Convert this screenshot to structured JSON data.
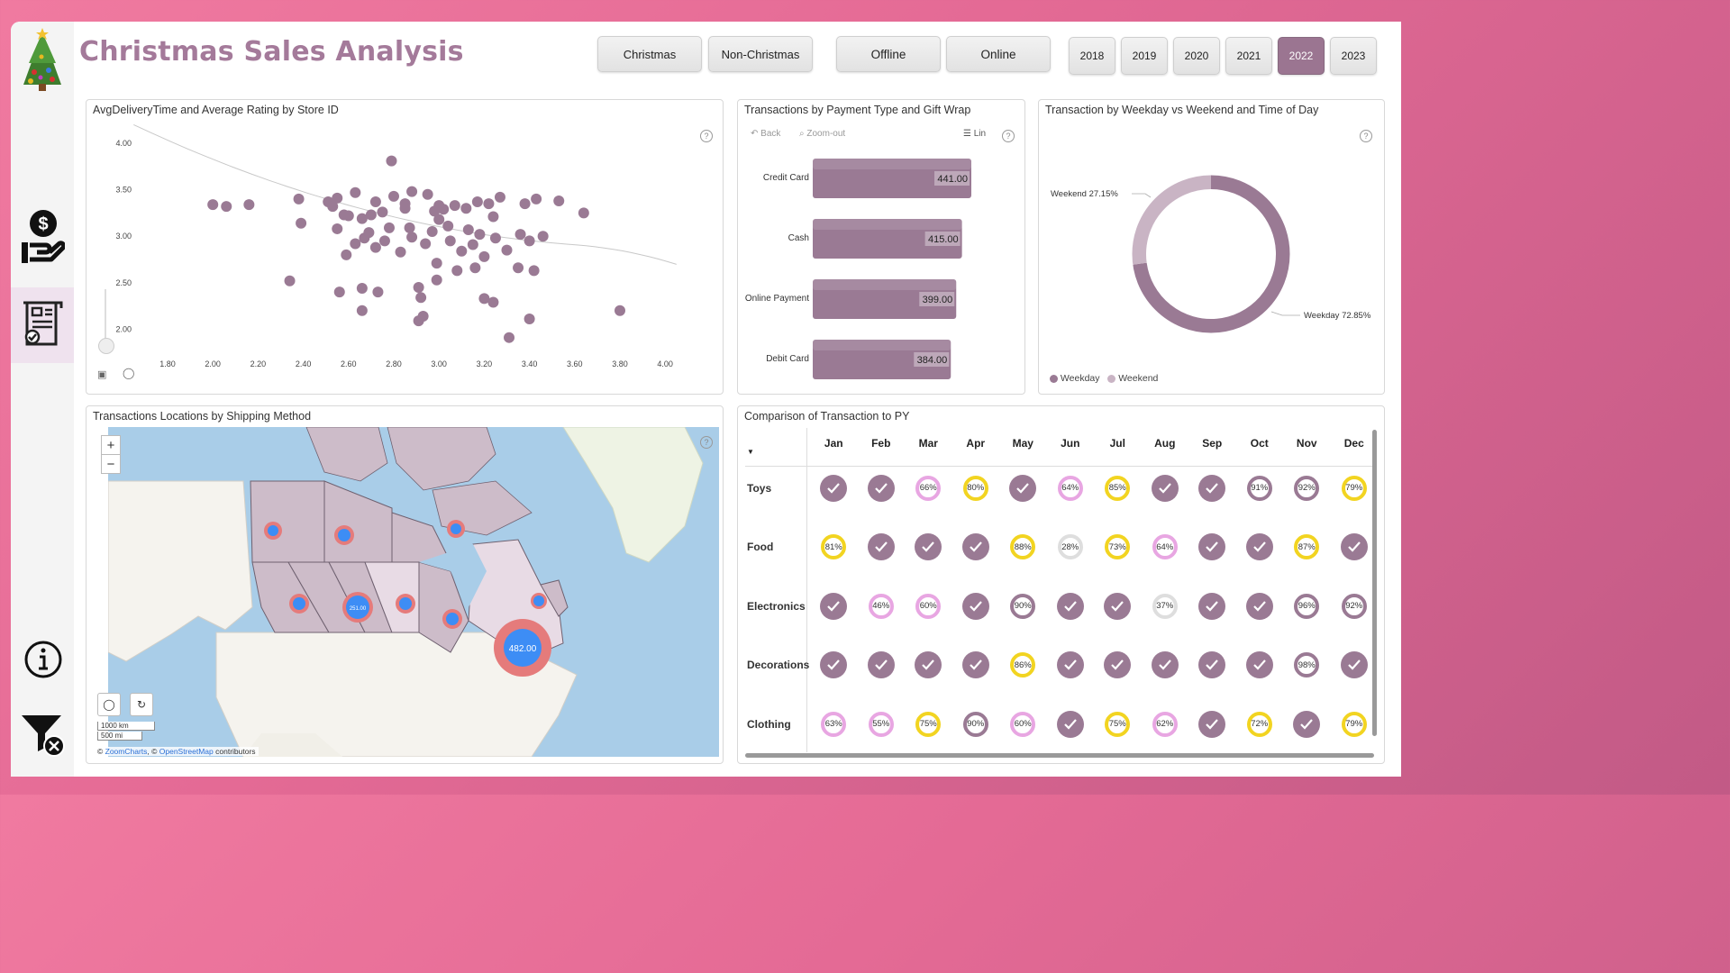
{
  "header": {
    "title": "Christmas Sales Analysis"
  },
  "filters": {
    "season": [
      "Christmas",
      "Non-Christmas"
    ],
    "channel": [
      "Offline",
      "Online"
    ],
    "years": [
      "2018",
      "2019",
      "2020",
      "2021",
      "2022",
      "2023"
    ],
    "active_year": "2022"
  },
  "scatter": {
    "title": "AvgDeliveryTime and Average Rating by Store ID",
    "y_ticks": [
      "4.00",
      "3.50",
      "3.00",
      "2.50",
      "2.00"
    ],
    "x_ticks": [
      "1.80",
      "2.00",
      "2.20",
      "2.40",
      "2.60",
      "2.80",
      "3.00",
      "3.20",
      "3.40",
      "3.60",
      "3.80",
      "4.00"
    ]
  },
  "payment": {
    "title": "Transactions by Payment Type and Gift Wrap",
    "back_label": "Back",
    "zoom_label": "Zoom-out",
    "lin_label": "Lin"
  },
  "weekday": {
    "title": "Transaction by Weekday vs Weekend and Time of Day",
    "weekend_label": "Weekend 27.15%",
    "weekday_label": "Weekday 72.85%",
    "legend": [
      "Weekday",
      "Weekend"
    ]
  },
  "map": {
    "title": "Transactions Locations by Shipping Method",
    "big_value": "482.00",
    "mid_value": "251.00",
    "scale_km": "1000 km",
    "scale_mi": "500 mi",
    "credit_a": "© ",
    "credit_b": "ZoomCharts",
    "credit_c": ", © ",
    "credit_d": "OpenStreetMap",
    "credit_e": " contributors"
  },
  "comparison": {
    "title": "Comparison of Transaction to PY",
    "months": [
      "Jan",
      "Feb",
      "Mar",
      "Apr",
      "May",
      "Jun",
      "Jul",
      "Aug",
      "Sep",
      "Oct",
      "Nov",
      "Dec"
    ],
    "rows": [
      {
        "label": "Toys",
        "cells": [
          "✓",
          "✓",
          "66%",
          "80%",
          "✓",
          "64%",
          "85%",
          "✓",
          "✓",
          "91%",
          "92%",
          "79%"
        ]
      },
      {
        "label": "Food",
        "cells": [
          "81%",
          "✓",
          "✓",
          "✓",
          "88%",
          "28%",
          "73%",
          "64%",
          "✓",
          "✓",
          "87%",
          "✓"
        ]
      },
      {
        "label": "Electronics",
        "cells": [
          "✓",
          "46%",
          "60%",
          "✓",
          "90%",
          "✓",
          "✓",
          "37%",
          "✓",
          "✓",
          "96%",
          "92%"
        ]
      },
      {
        "label": "Decorations",
        "cells": [
          "✓",
          "✓",
          "✓",
          "✓",
          "86%",
          "✓",
          "✓",
          "✓",
          "✓",
          "✓",
          "98%",
          "✓"
        ]
      },
      {
        "label": "Clothing",
        "cells": [
          "63%",
          "55%",
          "75%",
          "90%",
          "60%",
          "✓",
          "75%",
          "62%",
          "✓",
          "72%",
          "✓",
          "79%"
        ]
      }
    ]
  },
  "chart_data": [
    {
      "type": "scatter",
      "title": "AvgDeliveryTime and Average Rating by Store ID",
      "xlim": [
        1.7,
        4.1
      ],
      "ylim": [
        1.85,
        4.05
      ],
      "trendline": true,
      "points": [
        [
          2.79,
          3.81
        ],
        [
          2.0,
          3.34
        ],
        [
          2.06,
          3.32
        ],
        [
          2.16,
          3.34
        ],
        [
          2.38,
          3.4
        ],
        [
          2.39,
          3.14
        ],
        [
          2.51,
          3.37
        ],
        [
          2.53,
          3.32
        ],
        [
          2.55,
          3.41
        ],
        [
          2.58,
          3.23
        ],
        [
          2.6,
          3.22
        ],
        [
          2.63,
          3.47
        ],
        [
          2.66,
          3.19
        ],
        [
          2.7,
          3.23
        ],
        [
          2.72,
          3.37
        ],
        [
          2.75,
          3.26
        ],
        [
          2.8,
          3.43
        ],
        [
          2.85,
          3.35
        ],
        [
          2.88,
          3.48
        ],
        [
          2.95,
          3.45
        ],
        [
          2.98,
          3.27
        ],
        [
          3.02,
          3.29
        ],
        [
          3.07,
          3.33
        ],
        [
          3.12,
          3.3
        ],
        [
          3.17,
          3.37
        ],
        [
          3.22,
          3.35
        ],
        [
          3.27,
          3.42
        ],
        [
          3.38,
          3.35
        ],
        [
          3.43,
          3.4
        ],
        [
          3.53,
          3.38
        ],
        [
          3.64,
          3.25
        ],
        [
          2.55,
          3.08
        ],
        [
          2.59,
          2.8
        ],
        [
          2.63,
          2.92
        ],
        [
          2.67,
          2.98
        ],
        [
          2.72,
          2.88
        ],
        [
          2.76,
          2.95
        ],
        [
          2.83,
          2.83
        ],
        [
          2.88,
          2.99
        ],
        [
          2.94,
          2.92
        ],
        [
          2.99,
          2.71
        ],
        [
          3.05,
          2.95
        ],
        [
          3.1,
          2.84
        ],
        [
          3.15,
          2.91
        ],
        [
          3.2,
          2.78
        ],
        [
          3.25,
          2.98
        ],
        [
          3.3,
          2.85
        ],
        [
          3.36,
          3.02
        ],
        [
          3.4,
          2.95
        ],
        [
          3.46,
          3.0
        ],
        [
          2.34,
          2.52
        ],
        [
          2.56,
          2.4
        ],
        [
          2.66,
          2.44
        ],
        [
          2.73,
          2.4
        ],
        [
          2.91,
          2.45
        ],
        [
          2.92,
          2.34
        ],
        [
          2.99,
          2.53
        ],
        [
          3.2,
          2.33
        ],
        [
          3.24,
          2.29
        ],
        [
          2.66,
          2.2
        ],
        [
          2.93,
          2.14
        ],
        [
          2.91,
          2.09
        ],
        [
          3.4,
          2.11
        ],
        [
          3.8,
          2.2
        ],
        [
          3.31,
          1.91
        ],
        [
          2.78,
          3.09
        ],
        [
          2.87,
          3.09
        ],
        [
          3.04,
          3.11
        ],
        [
          3.13,
          3.07
        ],
        [
          3.16,
          2.66
        ],
        [
          3.08,
          2.63
        ],
        [
          3.0,
          3.18
        ],
        [
          3.24,
          3.21
        ],
        [
          3.35,
          2.66
        ],
        [
          3.42,
          2.63
        ],
        [
          2.85,
          3.3
        ],
        [
          3.0,
          3.33
        ],
        [
          2.69,
          3.04
        ],
        [
          2.97,
          3.05
        ],
        [
          3.18,
          3.02
        ]
      ]
    },
    {
      "type": "bar",
      "title": "Transactions by Payment Type and Gift Wrap",
      "categories": [
        "Credit Card",
        "Cash",
        "Online Payment",
        "Debit Card"
      ],
      "values": [
        441.0,
        415.0,
        399.0,
        384.0
      ],
      "value_labels": [
        "441.00",
        "415.00",
        "399.00",
        "384.00"
      ],
      "color": "#9a7a94"
    },
    {
      "type": "pie",
      "title": "Transaction by Weekday vs Weekend and Time of Day",
      "labels": [
        "Weekday",
        "Weekend"
      ],
      "values": [
        72.85,
        27.15
      ],
      "colors": [
        "#9a7a94",
        "#c9b4c4"
      ],
      "legend": "bottom-left"
    }
  ]
}
